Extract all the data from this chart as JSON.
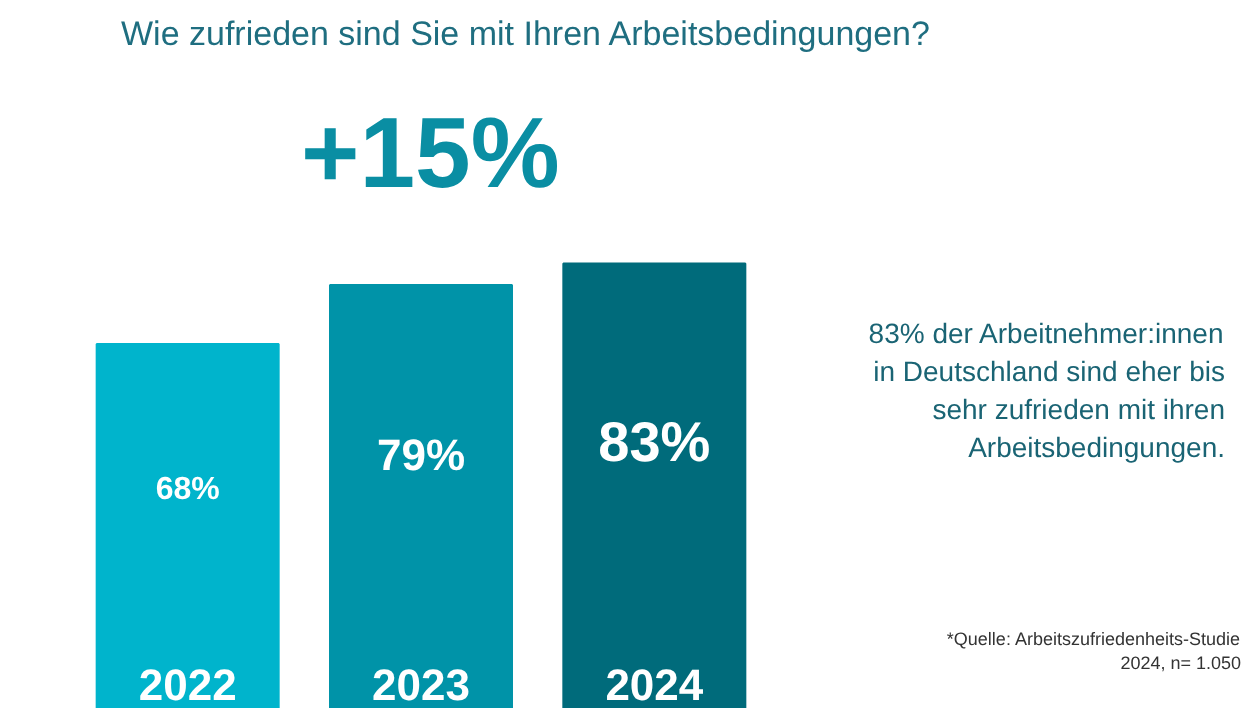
{
  "chart_data": {
    "type": "bar",
    "title": "Wie zufrieden sind Sie mit Ihren Arbeitsbedingungen?",
    "categories": [
      "2022",
      "2023",
      "2024"
    ],
    "values": [
      68,
      79,
      83
    ],
    "colors": [
      "#00b4cc",
      "#0093a8",
      "#006b7b"
    ],
    "value_labels": [
      "68%",
      "79%",
      "83%"
    ],
    "tick_labels": false,
    "grid": false,
    "annotations": [
      "+15%",
      "83% der Arbeitnehmer:innen in Deutschland sind eher bis sehr zufrieden mit ihren Arbeitsbedingungen.",
      "*Quelle: Arbeitszufriedenheits-Studie 2024, n= 1.050"
    ]
  }
}
